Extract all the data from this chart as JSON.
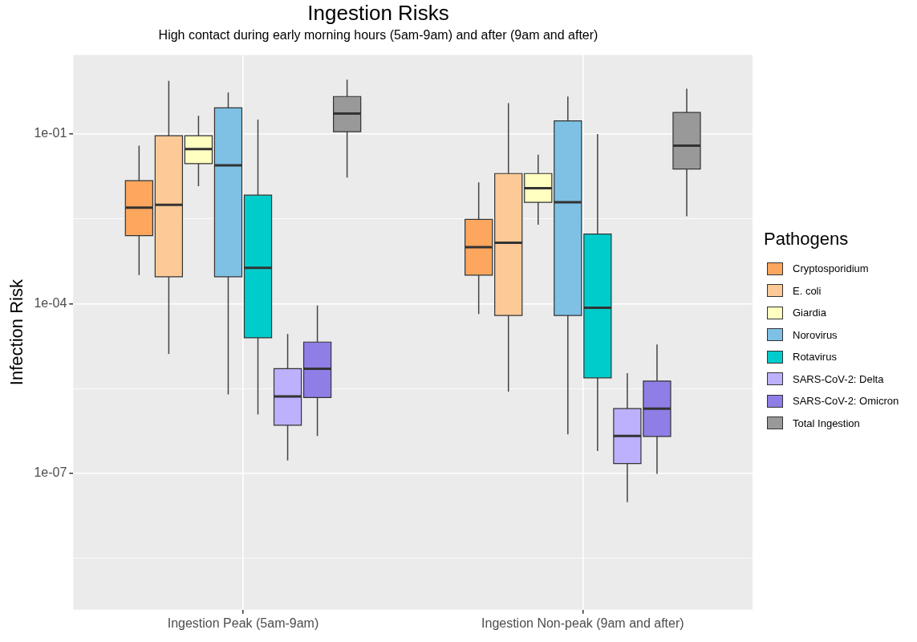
{
  "chart_data": {
    "type": "box",
    "title": "Ingestion Risks",
    "subtitle": "High contact during early morning hours (5am-9am) and after (9am and after)",
    "ylabel": "Infection Risk",
    "legend_title": "Pathogens",
    "legend": "right",
    "grid": true,
    "log": "y",
    "categories": [
      "Ingestion Peak (5am-9am)",
      "Ingestion Non-peak (9am and after)"
    ],
    "ylim": [
      3.9e-10,
      2.5
    ],
    "yticks": [
      {
        "value": 3.16e-09,
        "label": null
      },
      {
        "value": 1e-07,
        "label": "1e-07"
      },
      {
        "value": 3.16e-06,
        "label": null
      },
      {
        "value": 0.0001,
        "label": "1e-04"
      },
      {
        "value": 0.00316,
        "label": null
      },
      {
        "value": 0.1,
        "label": "1e-01"
      }
    ],
    "series": [
      {
        "name": "Cryptosporidium",
        "color": "#fca65e",
        "boxes": [
          {
            "low": 0.00032,
            "q1": 0.0016,
            "median": 0.005,
            "q3": 0.015,
            "high": 0.062
          },
          {
            "low": 6.6e-05,
            "q1": 0.00032,
            "median": 0.001,
            "q3": 0.0031,
            "high": 0.014
          }
        ]
      },
      {
        "name": "E. coli",
        "color": "#fdc996",
        "boxes": [
          {
            "low": 1.3e-05,
            "q1": 0.0003,
            "median": 0.0056,
            "q3": 0.093,
            "high": 0.87
          },
          {
            "low": 2.8e-06,
            "q1": 6.2e-05,
            "median": 0.0012,
            "q3": 0.02,
            "high": 0.35
          }
        ]
      },
      {
        "name": "Giardia",
        "color": "#ffffc0",
        "boxes": [
          {
            "low": 0.012,
            "q1": 0.03,
            "median": 0.054,
            "q3": 0.093,
            "high": 0.21
          },
          {
            "low": 0.0025,
            "q1": 0.0062,
            "median": 0.011,
            "q3": 0.02,
            "high": 0.043
          }
        ]
      },
      {
        "name": "Norovirus",
        "color": "#7ec1e5",
        "boxes": [
          {
            "low": 2.5e-06,
            "q1": 0.0003,
            "median": 0.028,
            "q3": 0.29,
            "high": 0.54
          },
          {
            "low": 4.9e-07,
            "q1": 6.2e-05,
            "median": 0.0062,
            "q3": 0.17,
            "high": 0.46
          }
        ]
      },
      {
        "name": "Rotavirus",
        "color": "#00cccc",
        "boxes": [
          {
            "low": 1.1e-06,
            "q1": 2.5e-05,
            "median": 0.00043,
            "q3": 0.0083,
            "high": 0.18
          },
          {
            "low": 2.5e-07,
            "q1": 4.9e-06,
            "median": 8.5e-05,
            "q3": 0.0017,
            "high": 0.1
          }
        ]
      },
      {
        "name": "SARS-CoV-2: Delta",
        "color": "#bdb0fd",
        "boxes": [
          {
            "low": 1.7e-07,
            "q1": 7.1e-07,
            "median": 2.3e-06,
            "q3": 7.1e-06,
            "high": 2.9e-05
          },
          {
            "low": 3.1e-08,
            "q1": 1.5e-07,
            "median": 4.6e-07,
            "q3": 1.4e-06,
            "high": 5.9e-06
          }
        ]
      },
      {
        "name": "SARS-CoV-2: Omicron",
        "color": "#8f7ee6",
        "boxes": [
          {
            "low": 4.6e-07,
            "q1": 2.2e-06,
            "median": 7.1e-06,
            "q3": 2.1e-05,
            "high": 9.3e-05
          },
          {
            "low": 9.8e-08,
            "q1": 4.5e-07,
            "median": 1.4e-06,
            "q3": 4.3e-06,
            "high": 1.9e-05
          }
        ]
      },
      {
        "name": "Total Ingestion",
        "color": "#999999",
        "boxes": [
          {
            "low": 0.017,
            "q1": 0.11,
            "median": 0.23,
            "q3": 0.46,
            "high": 0.91
          },
          {
            "low": 0.0035,
            "q1": 0.024,
            "median": 0.062,
            "q3": 0.24,
            "high": 0.63
          }
        ]
      }
    ]
  }
}
